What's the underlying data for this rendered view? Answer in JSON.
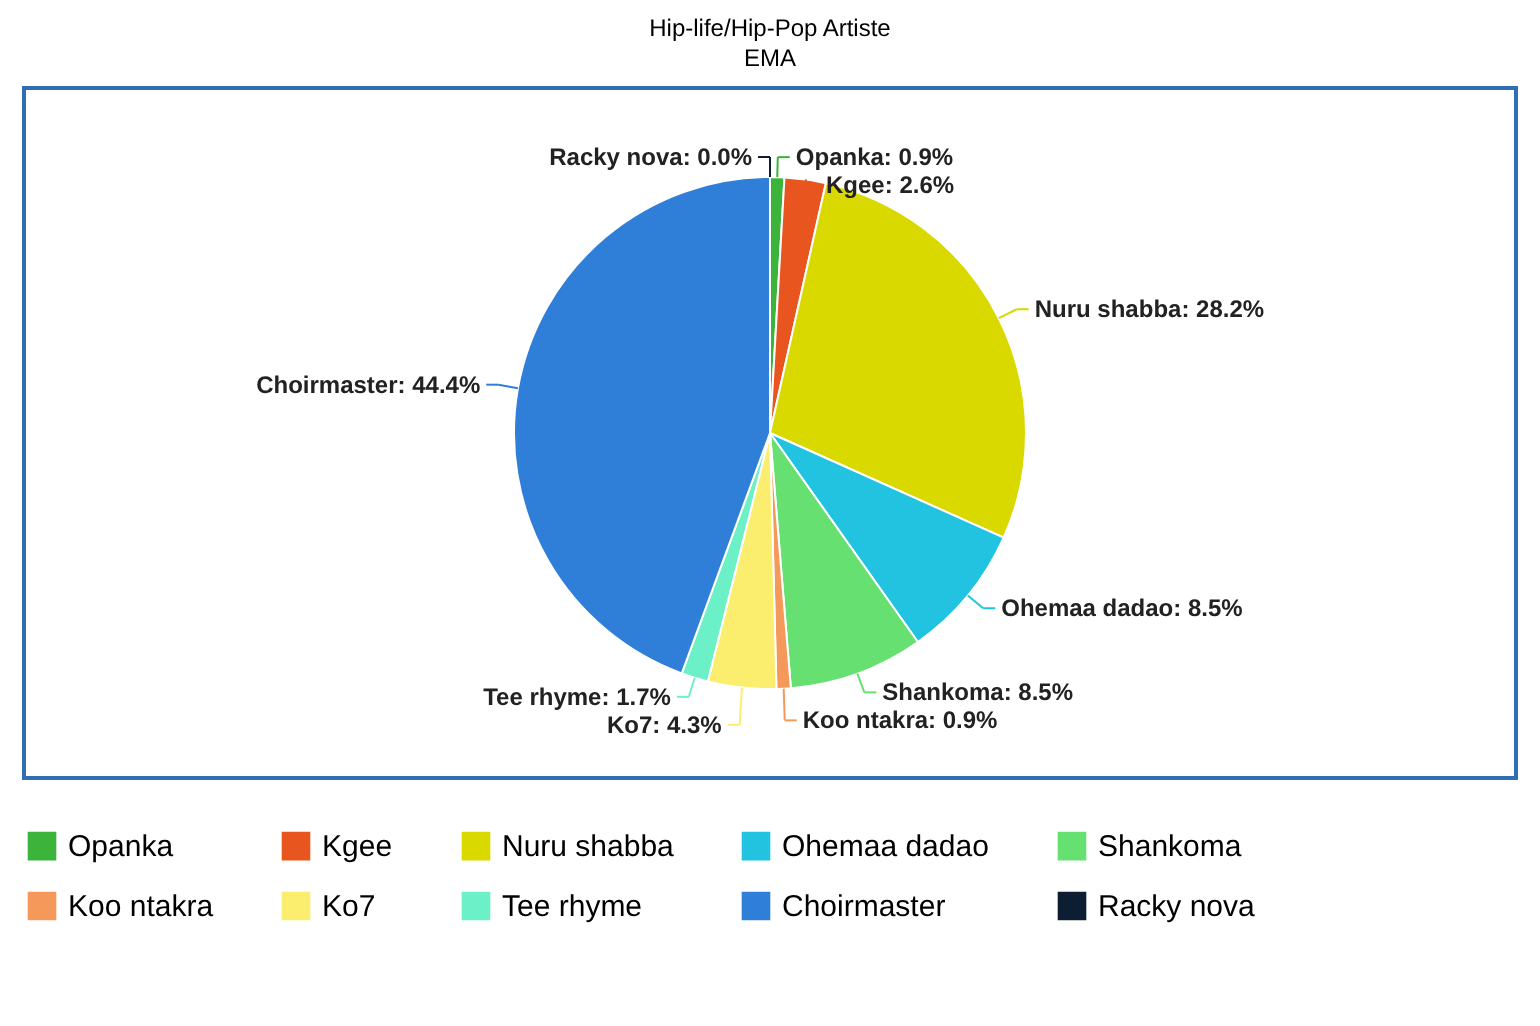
{
  "chart_data": {
    "type": "pie",
    "title": "Hip-life/Hip-Pop Artiste",
    "subtitle": "EMA",
    "categories": [
      "Opanka",
      "Kgee",
      "Nuru shabba",
      "Ohemaa dadao",
      "Shankoma",
      "Koo ntakra",
      "Ko7",
      "Tee rhyme",
      "Choirmaster",
      "Racky nova"
    ],
    "values": [
      0.9,
      2.6,
      28.2,
      8.5,
      8.5,
      0.9,
      4.3,
      1.7,
      44.4,
      0.0
    ],
    "value_labels": [
      "Opanka: 0.9%",
      "Kgee: 2.6%",
      "Nuru shabba: 28.2%",
      "Ohemaa dadao: 8.5%",
      "Shankoma: 8.5%",
      "Koo ntakra: 0.9%",
      "Ko7: 4.3%",
      "Tee rhyme: 1.7%",
      "Choirmaster: 44.4%",
      "Racky nova: 0.0%"
    ],
    "colors": [
      "#3cb43c",
      "#e8551e",
      "#d9d900",
      "#22c3e0",
      "#66e070",
      "#f5995a",
      "#fbee6e",
      "#6cf0c8",
      "#2f7fd8",
      "#0d1e33"
    ],
    "legend": "bottom"
  }
}
